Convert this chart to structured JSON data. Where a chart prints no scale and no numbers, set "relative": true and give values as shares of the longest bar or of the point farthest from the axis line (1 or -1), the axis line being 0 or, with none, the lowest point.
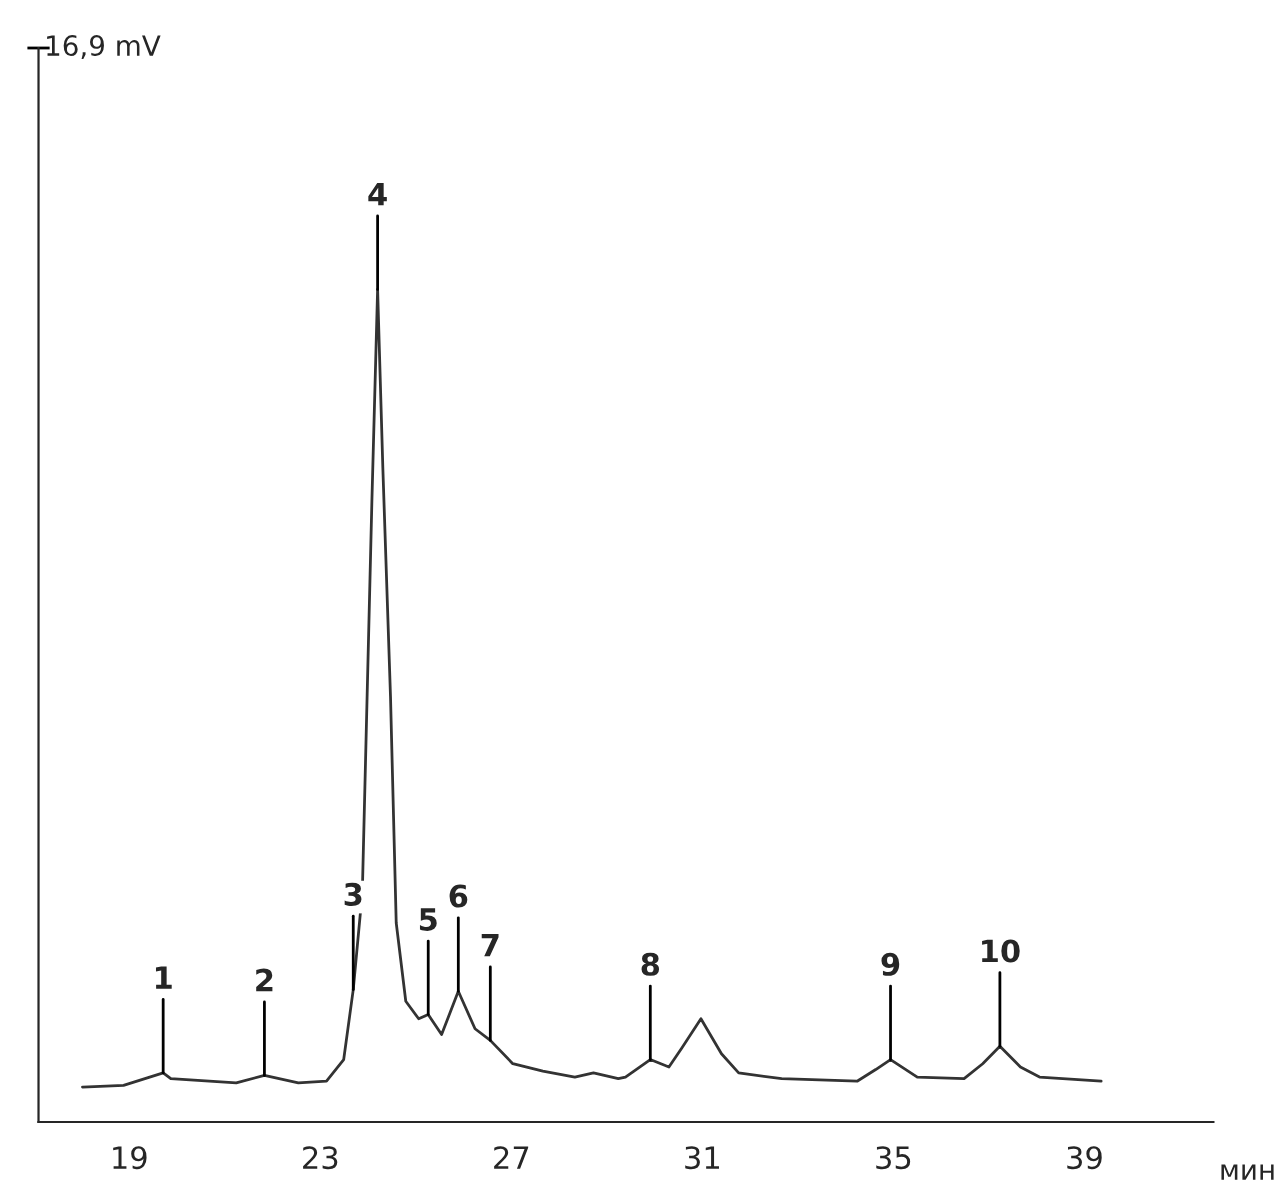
{
  "chart_data": {
    "type": "line",
    "relative": true,
    "xlabel": "мин",
    "xlim": [
      17.1,
      41.7
    ],
    "xticks": [
      19,
      23,
      27,
      31,
      35,
      39
    ],
    "grid": false,
    "legend": false,
    "marker": "none",
    "line_style": "solid",
    "series": [
      {
        "color": "#333333",
        "x": [
          18.02,
          18.88,
          19.71,
          19.87,
          21.24,
          21.83,
          22.54,
          23.13,
          23.49,
          23.69,
          23.88,
          24.08,
          24.2,
          24.31,
          24.47,
          24.59,
          24.79,
          25.06,
          25.26,
          25.54,
          25.89,
          26.24,
          26.56,
          27.03,
          27.66,
          28.33,
          28.72,
          29.24,
          29.39,
          29.91,
          30.3,
          30.57,
          30.97,
          31.4,
          31.76,
          32.66,
          34.24,
          34.63,
          34.94,
          35.5,
          36.48,
          36.87,
          37.23,
          37.66,
          38.06,
          39.35
        ],
        "values": [
          0.042,
          0.044,
          0.059,
          0.052,
          0.047,
          0.056,
          0.047,
          0.049,
          0.075,
          0.159,
          0.276,
          0.745,
          1.0,
          0.785,
          0.511,
          0.239,
          0.145,
          0.124,
          0.129,
          0.105,
          0.157,
          0.112,
          0.098,
          0.07,
          0.061,
          0.054,
          0.059,
          0.052,
          0.054,
          0.075,
          0.066,
          0.089,
          0.124,
          0.082,
          0.059,
          0.052,
          0.049,
          0.063,
          0.075,
          0.054,
          0.052,
          0.07,
          0.091,
          0.066,
          0.054,
          0.049
        ]
      }
    ],
    "annotations": [
      "16,9 mV",
      {
        "text": "1",
        "x": 19.71,
        "y": 0.059
      },
      {
        "text": "2",
        "x": 21.83,
        "y": 0.056
      },
      {
        "text": "3",
        "x": 23.69,
        "y": 0.159
      },
      {
        "text": "4",
        "x": 24.2,
        "y": 1.0
      },
      {
        "text": "5",
        "x": 25.26,
        "y": 0.129
      },
      {
        "text": "6",
        "x": 25.89,
        "y": 0.157
      },
      {
        "text": "7",
        "x": 26.56,
        "y": 0.098
      },
      {
        "text": "8",
        "x": 29.91,
        "y": 0.075
      },
      {
        "text": "9",
        "x": 34.94,
        "y": 0.075
      },
      {
        "text": "10",
        "x": 37.23,
        "y": 0.091
      }
    ]
  }
}
